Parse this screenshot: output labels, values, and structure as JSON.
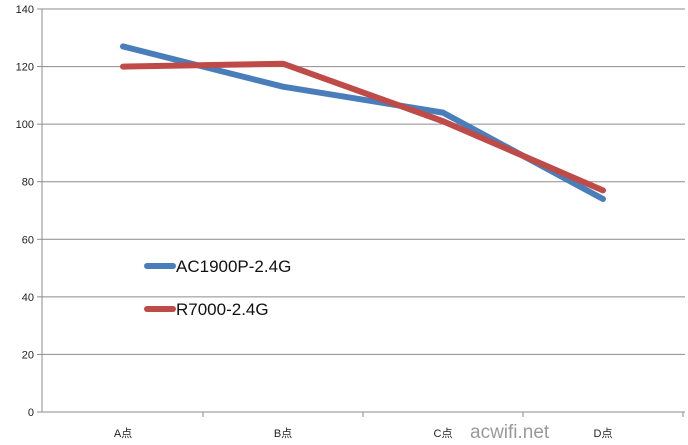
{
  "chart_data": {
    "type": "line",
    "categories": [
      "A点",
      "B点",
      "C点",
      "D点"
    ],
    "y_ticks": [
      0,
      20,
      40,
      60,
      80,
      100,
      120,
      140
    ],
    "ylim": [
      0,
      140
    ],
    "grid": "horizontal",
    "legend_position": "left-center",
    "series": [
      {
        "name": "AC1900P-2.4G",
        "color": "#4a7ebb",
        "values": [
          127,
          113,
          104,
          74
        ]
      },
      {
        "name": "R7000-2.4G",
        "color": "#be4b48",
        "values": [
          120,
          121,
          101,
          77
        ]
      }
    ]
  },
  "watermark": "acwifi.net"
}
